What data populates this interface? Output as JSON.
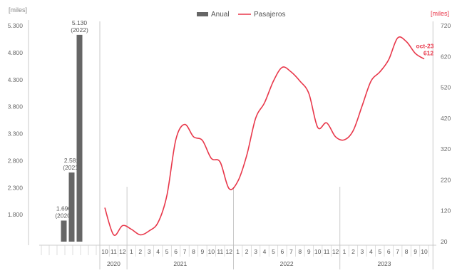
{
  "chart_data": {
    "legend": {
      "position": "top-center",
      "entries": [
        {
          "label": "Anual",
          "color": "#666666",
          "marker": "bar"
        },
        {
          "label": "Pasajeros",
          "color": "#e8374a",
          "marker": "line"
        }
      ]
    },
    "left_chart": {
      "type": "bar",
      "ylabel": "[miles]",
      "ylim": [
        1300,
        5300
      ],
      "yticks": [
        "5.300",
        "4.800",
        "4.300",
        "3.800",
        "3.300",
        "2.800",
        "2.300",
        "1.800"
      ],
      "ytick_values": [
        5300,
        4800,
        4300,
        3800,
        3300,
        2800,
        2300,
        1800
      ],
      "bars": [
        {
          "value": 1690,
          "label": "1.690",
          "year_label": "(2020)"
        },
        {
          "value": 2581,
          "label": "2.581",
          "year_label": "(2021)"
        },
        {
          "value": 5130,
          "label": "5.130",
          "year_label": "(2022)"
        }
      ],
      "color": "#666666"
    },
    "right_chart": {
      "type": "line",
      "ylabel": "[miles]",
      "ylim": [
        20,
        720
      ],
      "yticks": [
        "720",
        "620",
        "520",
        "420",
        "320",
        "220",
        "120",
        "20"
      ],
      "ytick_values": [
        720,
        620,
        520,
        420,
        320,
        220,
        120,
        20
      ],
      "month_labels": [
        "10",
        "11",
        "12",
        "1",
        "2",
        "3",
        "4",
        "5",
        "6",
        "7",
        "8",
        "9",
        "10",
        "11",
        "12",
        "1",
        "2",
        "3",
        "4",
        "5",
        "6",
        "7",
        "8",
        "9",
        "10",
        "11",
        "12",
        "1",
        "2",
        "3",
        "4",
        "5",
        "6",
        "7",
        "8",
        "9",
        "10"
      ],
      "year_groups": [
        {
          "label": "2020",
          "start": 0,
          "count": 3
        },
        {
          "label": "2021",
          "start": 3,
          "count": 12
        },
        {
          "label": "2022",
          "start": 15,
          "count": 12
        },
        {
          "label": "2023",
          "start": 27,
          "count": 10
        }
      ],
      "series": [
        {
          "name": "Pasajeros",
          "color": "#e8374a",
          "values": [
            130,
            42,
            72,
            60,
            42,
            55,
            82,
            170,
            350,
            400,
            360,
            348,
            290,
            278,
            192,
            216,
            300,
            420,
            470,
            540,
            585,
            570,
            540,
            500,
            390,
            405,
            360,
            350,
            380,
            460,
            540,
            570,
            610,
            680,
            668,
            630,
            612
          ]
        }
      ],
      "annotation": {
        "text": [
          "oct-23",
          "612"
        ],
        "color": "#e8374a"
      }
    }
  }
}
